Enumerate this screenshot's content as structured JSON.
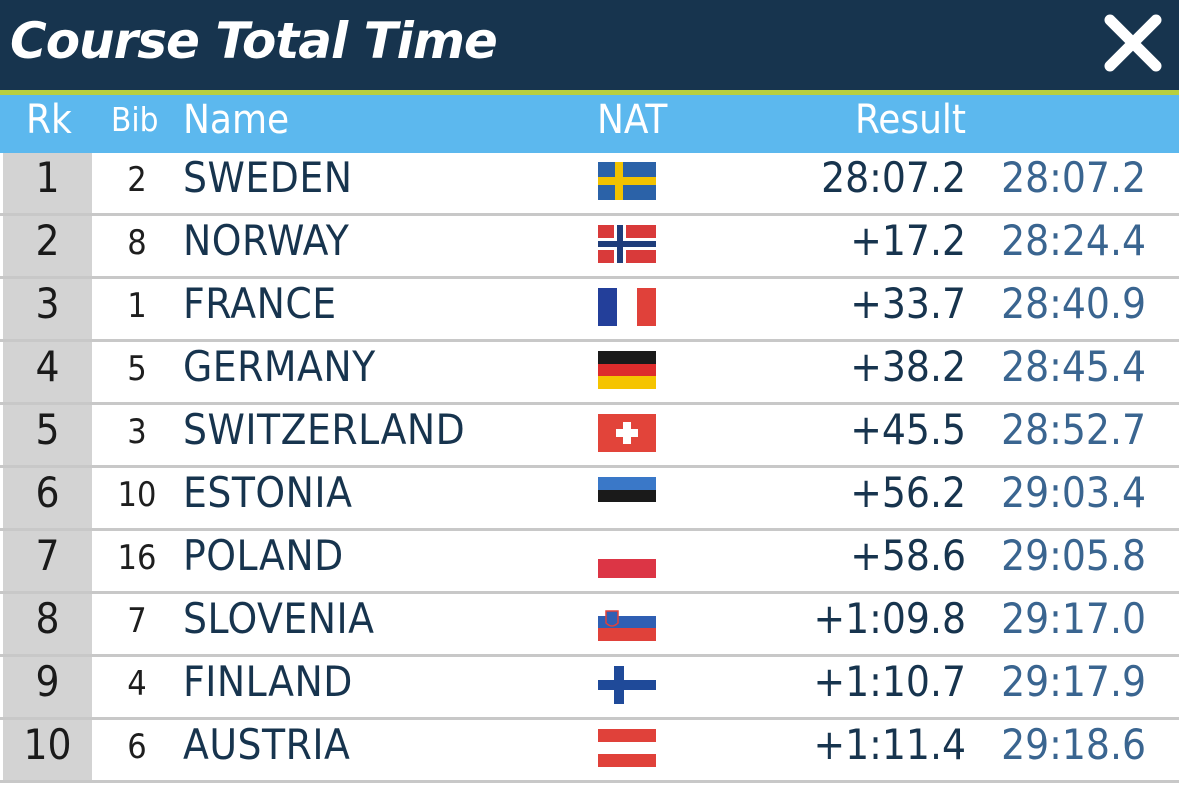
{
  "window": {
    "title": "Course Total Time"
  },
  "table": {
    "headers": {
      "rank": "Rk",
      "bib": "Bib",
      "name": "Name",
      "nat": "NAT",
      "result": "Result"
    },
    "rows": [
      {
        "rank": "1",
        "bib": "2",
        "name": "SWEDEN",
        "flag": "sweden-flag-icon",
        "result": "28:07.2",
        "total": "28:07.2"
      },
      {
        "rank": "2",
        "bib": "8",
        "name": "NORWAY",
        "flag": "norway-flag-icon",
        "result": "+17.2",
        "total": "28:24.4"
      },
      {
        "rank": "3",
        "bib": "1",
        "name": "FRANCE",
        "flag": "france-flag-icon",
        "result": "+33.7",
        "total": "28:40.9"
      },
      {
        "rank": "4",
        "bib": "5",
        "name": "GERMANY",
        "flag": "germany-flag-icon",
        "result": "+38.2",
        "total": "28:45.4"
      },
      {
        "rank": "5",
        "bib": "3",
        "name": "SWITZERLAND",
        "flag": "switzerland-flag-icon",
        "result": "+45.5",
        "total": "28:52.7"
      },
      {
        "rank": "6",
        "bib": "10",
        "name": "ESTONIA",
        "flag": "estonia-flag-icon",
        "result": "+56.2",
        "total": "29:03.4"
      },
      {
        "rank": "7",
        "bib": "16",
        "name": "POLAND",
        "flag": "poland-flag-icon",
        "result": "+58.6",
        "total": "29:05.8"
      },
      {
        "rank": "8",
        "bib": "7",
        "name": "SLOVENIA",
        "flag": "slovenia-flag-icon",
        "result": "+1:09.8",
        "total": "29:17.0"
      },
      {
        "rank": "9",
        "bib": "4",
        "name": "FINLAND",
        "flag": "finland-flag-icon",
        "result": "+1:10.7",
        "total": "29:17.9"
      },
      {
        "rank": "10",
        "bib": "6",
        "name": "AUSTRIA",
        "flag": "austria-flag-icon",
        "result": "+1:11.4",
        "total": "29:18.6"
      }
    ]
  },
  "colors": {
    "titlebar": "#17344e",
    "accent": "#b9cf3e",
    "header": "#5cb8ee",
    "rank_cell": "#d3d3d3",
    "total_text": "#3a6590"
  }
}
